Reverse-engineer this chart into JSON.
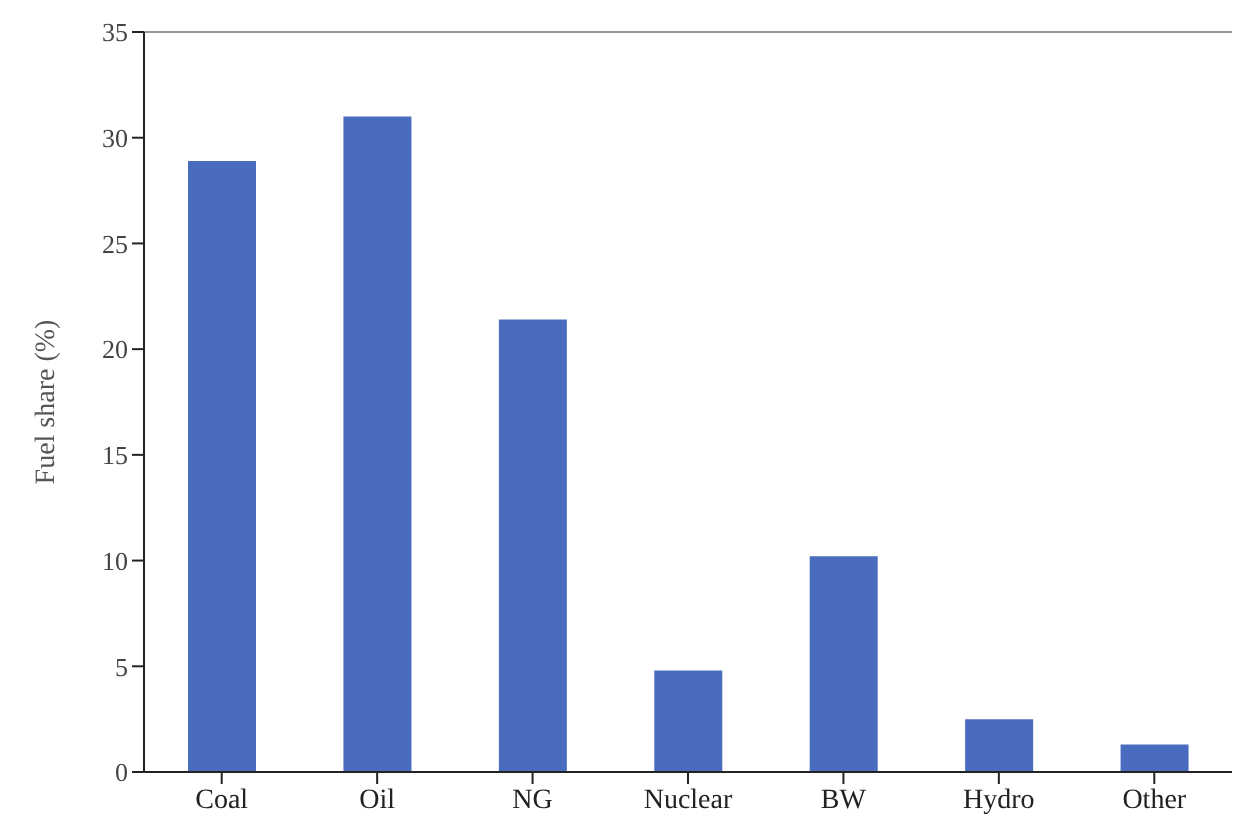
{
  "chart_data": {
    "type": "bar",
    "ylabel": "Fuel share (%)",
    "categories": [
      "Coal",
      "Oil",
      "NG",
      "Nuclear",
      "BW",
      "Hydro",
      "Other"
    ],
    "values": [
      28.9,
      31.0,
      21.4,
      4.8,
      10.2,
      2.5,
      1.3
    ],
    "color": "#4a6cbf",
    "ylim": [
      0,
      35
    ],
    "yticks": [
      0,
      5,
      10,
      15,
      20,
      25,
      30,
      35
    ],
    "grid": false
  }
}
